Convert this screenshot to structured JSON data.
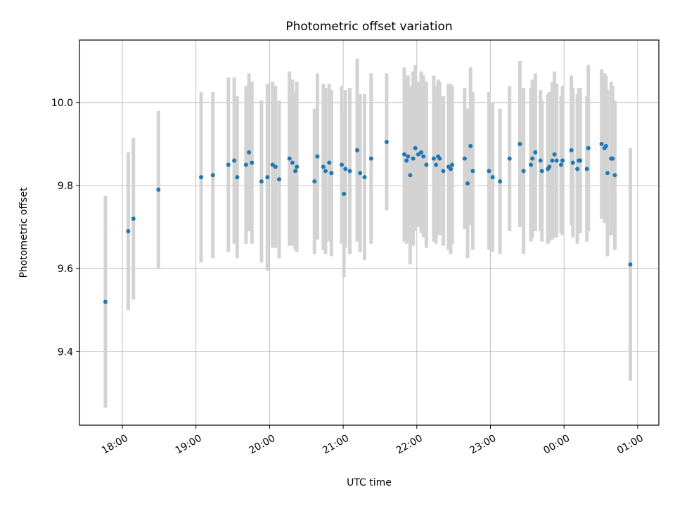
{
  "chart_data": {
    "type": "scatter",
    "title": "Photometric offset variation",
    "xlabel": "UTC time",
    "ylabel": "Photometric offset",
    "x_tick_labels": [
      "18:00",
      "19:00",
      "20:00",
      "21:00",
      "22:00",
      "23:00",
      "00:00",
      "01:00"
    ],
    "y_tick_labels": [
      "9.4",
      "9.6",
      "9.8",
      "10.0"
    ],
    "y_ticks": [
      9.4,
      9.6,
      9.8,
      10.0
    ],
    "x_range_hours": [
      17.42,
      25.25
    ],
    "ylim": [
      9.22,
      10.15
    ],
    "grid": true,
    "colors": {
      "point": "#1f77b4",
      "errorbar": "#d3d3d3",
      "grid": "#b0b0b0"
    },
    "series": [
      {
        "x_hours": [
          17.77,
          18.08,
          18.15,
          18.49,
          19.07,
          19.23,
          19.44,
          19.52,
          19.56,
          19.68,
          19.72,
          19.76,
          19.89,
          19.97,
          20.04,
          20.08,
          20.13,
          20.27,
          20.31,
          20.35,
          20.37,
          20.61,
          20.65,
          20.73,
          20.76,
          20.81,
          20.84,
          20.98,
          21.01,
          21.03,
          21.09,
          21.19,
          21.23,
          21.29,
          21.38,
          21.59,
          21.83,
          21.86,
          21.88,
          21.91,
          21.95,
          21.98,
          22.02,
          22.06,
          22.09,
          22.13,
          22.23,
          22.26,
          22.29,
          22.31,
          22.36,
          22.43,
          22.46,
          22.48,
          22.65,
          22.69,
          22.73,
          22.76,
          22.98,
          23.03,
          23.13,
          23.26,
          23.4,
          23.45,
          23.55,
          23.57,
          23.61,
          23.68,
          23.7,
          23.78,
          23.8,
          23.84,
          23.87,
          23.9,
          23.96,
          23.98,
          24.1,
          24.12,
          24.18,
          24.2,
          24.22,
          24.31,
          24.33,
          24.51,
          24.55,
          24.57,
          24.59,
          24.64,
          24.66,
          24.69,
          24.9
        ],
        "y": [
          9.52,
          9.69,
          9.72,
          9.79,
          9.82,
          9.825,
          9.85,
          9.86,
          9.82,
          9.85,
          9.88,
          9.855,
          9.81,
          9.82,
          9.85,
          9.845,
          9.815,
          9.865,
          9.855,
          9.835,
          9.845,
          9.81,
          9.87,
          9.845,
          9.835,
          9.855,
          9.83,
          9.85,
          9.78,
          9.84,
          9.835,
          9.885,
          9.83,
          9.82,
          9.865,
          9.905,
          9.875,
          9.86,
          9.87,
          9.825,
          9.865,
          9.89,
          9.875,
          9.88,
          9.87,
          9.85,
          9.865,
          9.85,
          9.87,
          9.865,
          9.835,
          9.845,
          9.84,
          9.85,
          9.865,
          9.805,
          9.895,
          9.835,
          9.835,
          9.82,
          9.81,
          9.865,
          9.9,
          9.835,
          9.85,
          9.865,
          9.88,
          9.86,
          9.835,
          9.84,
          9.845,
          9.86,
          9.875,
          9.86,
          9.85,
          9.86,
          9.885,
          9.855,
          9.84,
          9.86,
          9.86,
          9.84,
          9.89,
          9.9,
          9.89,
          9.895,
          9.83,
          9.865,
          9.865,
          9.825,
          9.61
        ],
        "yerr": [
          0.255,
          0.19,
          0.195,
          0.19,
          0.205,
          0.2,
          0.21,
          0.2,
          0.195,
          0.19,
          0.19,
          0.195,
          0.195,
          0.225,
          0.2,
          0.195,
          0.19,
          0.21,
          0.2,
          0.19,
          0.205,
          0.175,
          0.2,
          0.2,
          0.2,
          0.19,
          0.2,
          0.19,
          0.2,
          0.19,
          0.2,
          0.22,
          0.19,
          0.2,
          0.205,
          0.165,
          0.21,
          0.2,
          0.195,
          0.215,
          0.21,
          0.2,
          0.175,
          0.195,
          0.195,
          0.2,
          0.2,
          0.19,
          0.185,
          0.185,
          0.18,
          0.2,
          0.205,
          0.19,
          0.17,
          0.18,
          0.19,
          0.19,
          0.19,
          0.18,
          0.175,
          0.175,
          0.2,
          0.2,
          0.185,
          0.19,
          0.19,
          0.17,
          0.17,
          0.18,
          0.18,
          0.19,
          0.2,
          0.185,
          0.165,
          0.18,
          0.18,
          0.18,
          0.18,
          0.175,
          0.175,
          0.175,
          0.2,
          0.18,
          0.18,
          0.17,
          0.2,
          0.185,
          0.175,
          0.18,
          0.28
        ]
      }
    ]
  }
}
